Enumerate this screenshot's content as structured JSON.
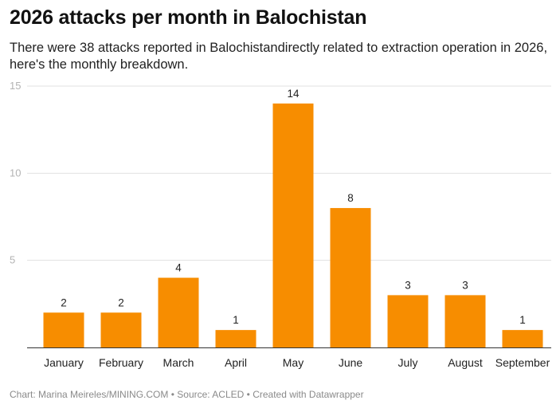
{
  "title": "2026 attacks per month in Balochistan",
  "subtitle": "There were 38 attacks reported in Balochistandirectly related to extraction operation in 2026, here's the monthly breakdown.",
  "footer": {
    "chart_by": "Chart: Marina Meireles/MINING.COM",
    "source": "Source: ACLED",
    "tool": "Created with Datawrapper",
    "separator": "•"
  },
  "colors": {
    "bar": "#f78d00",
    "grid": "#e1e1e1",
    "axis": "#333333",
    "tick_label": "#b3b3b3"
  },
  "chart_data": {
    "type": "bar",
    "categories": [
      "January",
      "February",
      "March",
      "April",
      "May",
      "June",
      "July",
      "August",
      "September"
    ],
    "values": [
      2,
      2,
      4,
      1,
      14,
      8,
      3,
      3,
      1
    ],
    "ylim": [
      0,
      15
    ],
    "yticks": [
      5,
      10,
      15
    ],
    "grid": true,
    "data_labels": true
  }
}
